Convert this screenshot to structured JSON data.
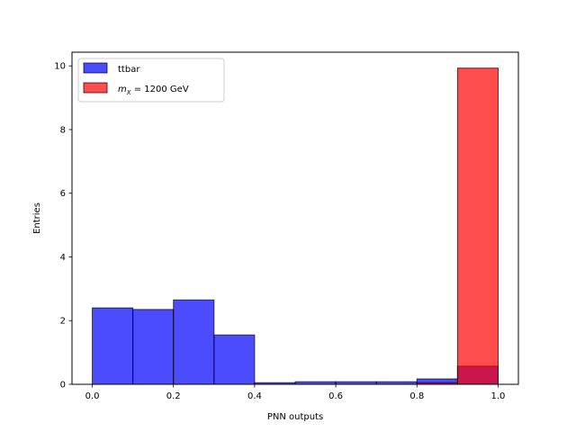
{
  "chart_data": {
    "type": "bar",
    "subtype": "histogram",
    "title": "",
    "xlabel": "PNN outputs",
    "ylabel": "Entries",
    "xlim": [
      -0.05,
      1.05
    ],
    "ylim": [
      0,
      10.43
    ],
    "grid": false,
    "legend_position": "top-left",
    "x_ticks": [
      0.0,
      0.2,
      0.4,
      0.6,
      0.8,
      1.0
    ],
    "x_tick_labels": [
      "0.0",
      "0.2",
      "0.4",
      "0.6",
      "0.8",
      "1.0"
    ],
    "y_ticks": [
      0,
      2,
      4,
      6,
      8,
      10
    ],
    "y_tick_labels": [
      "0",
      "2",
      "4",
      "6",
      "8",
      "10"
    ],
    "bin_edges": [
      0.0,
      0.1,
      0.2,
      0.3,
      0.4,
      0.5,
      0.6,
      0.7,
      0.8,
      0.9,
      1.0
    ],
    "series": [
      {
        "name": "ttbar",
        "color": "#0000ff",
        "values": [
          2.4,
          2.35,
          2.65,
          1.55,
          0.05,
          0.08,
          0.08,
          0.08,
          0.17,
          0.57
        ]
      },
      {
        "name_prefix": "m",
        "name_subscript": "X",
        "name_suffix": " = 1200 GeV",
        "color": "#ff0000",
        "values": [
          0,
          0,
          0,
          0,
          0,
          0,
          0,
          0,
          0.05,
          9.93
        ]
      }
    ]
  }
}
